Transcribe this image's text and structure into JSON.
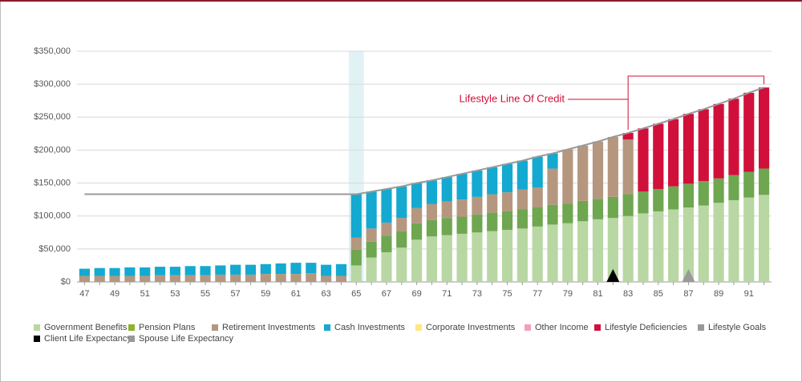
{
  "chart_data": {
    "type": "stacked_bar",
    "categories": [
      47,
      null,
      49,
      null,
      51,
      null,
      53,
      null,
      55,
      null,
      57,
      null,
      59,
      null,
      61,
      null,
      63,
      null,
      65,
      null,
      67,
      null,
      69,
      null,
      71,
      null,
      73,
      null,
      75,
      null,
      77,
      null,
      79,
      null,
      81,
      null,
      83,
      null,
      85,
      null,
      87,
      null,
      89,
      null,
      91,
      null
    ],
    "first_age": 47,
    "ylim": [
      0,
      350000
    ],
    "yticks": [
      {
        "value": 0,
        "label": "$0"
      },
      {
        "value": 50000,
        "label": "$50,000"
      },
      {
        "value": 100000,
        "label": "$100,000"
      },
      {
        "value": 150000,
        "label": "$150,000"
      },
      {
        "value": 200000,
        "label": "$200,000"
      },
      {
        "value": 250000,
        "label": "$250,000"
      },
      {
        "value": 300000,
        "label": "$300,000"
      },
      {
        "value": 350000,
        "label": "$350,000"
      }
    ],
    "grid": true,
    "highlight_age": 65,
    "series": [
      {
        "name": "Government Benefits",
        "color": "#b8d7a3",
        "values": [
          0,
          0,
          0,
          0,
          0,
          0,
          0,
          0,
          0,
          0,
          0,
          0,
          0,
          0,
          0,
          0,
          0,
          0,
          25000,
          37000,
          45000,
          52000,
          64000,
          69000,
          71000,
          73000,
          75000,
          77000,
          79000,
          81000,
          84000,
          87000,
          89000,
          92000,
          95000,
          97000,
          100000,
          104000,
          107000,
          110000,
          113000,
          116000,
          120000,
          124000,
          128000,
          132000
        ]
      },
      {
        "name": "Pension Plans",
        "color": "#6fa650",
        "legend_color": "#8db32a",
        "values": [
          0,
          0,
          0,
          0,
          0,
          0,
          0,
          0,
          0,
          0,
          0,
          0,
          0,
          0,
          0,
          0,
          0,
          0,
          24000,
          24000,
          25000,
          25000,
          25000,
          25000,
          26000,
          26000,
          27000,
          28000,
          28000,
          29000,
          29000,
          30000,
          30000,
          31000,
          31000,
          32000,
          33000,
          33000,
          34000,
          35000,
          36000,
          37000,
          37000,
          38000,
          39000,
          40000
        ]
      },
      {
        "name": "Retirement Investments",
        "color": "#b5977f",
        "values": [
          9000,
          9000,
          9000,
          9000,
          9000,
          10000,
          10000,
          10000,
          10000,
          11000,
          11000,
          11000,
          12000,
          12000,
          12000,
          13000,
          9000,
          9000,
          18000,
          20000,
          20000,
          20000,
          23000,
          24000,
          25000,
          26000,
          27000,
          28000,
          29000,
          30000,
          30000,
          55000,
          82000,
          84000,
          87000,
          91000,
          83000,
          0,
          0,
          0,
          0,
          0,
          0,
          0,
          0,
          0
        ]
      },
      {
        "name": "Cash Investments",
        "color": "#14a9d0",
        "values": [
          11000,
          12000,
          12000,
          13000,
          13000,
          13000,
          13000,
          14000,
          14000,
          14000,
          15000,
          15000,
          15000,
          16000,
          17000,
          16000,
          17000,
          18000,
          66000,
          56000,
          51000,
          48000,
          38000,
          36000,
          37000,
          39000,
          40000,
          41000,
          43000,
          44000,
          47000,
          23000,
          0,
          0,
          0,
          0,
          0,
          0,
          0,
          0,
          0,
          0,
          0,
          0,
          0,
          0
        ]
      },
      {
        "name": "Corporate Investments",
        "color": "#ffe680",
        "values": [
          0,
          0,
          0,
          0,
          0,
          0,
          0,
          0,
          0,
          0,
          0,
          0,
          0,
          0,
          0,
          0,
          0,
          0,
          0,
          0,
          0,
          0,
          0,
          0,
          0,
          0,
          0,
          0,
          0,
          0,
          0,
          0,
          0,
          0,
          0,
          0,
          0,
          0,
          0,
          0,
          0,
          0,
          0,
          0,
          0,
          0
        ]
      },
      {
        "name": "Other Income",
        "color": "#f2a0b5",
        "values": [
          0,
          0,
          0,
          0,
          0,
          0,
          0,
          0,
          0,
          0,
          0,
          0,
          0,
          0,
          0,
          0,
          0,
          0,
          0,
          0,
          0,
          0,
          0,
          0,
          0,
          0,
          0,
          0,
          0,
          0,
          0,
          0,
          0,
          0,
          0,
          0,
          0,
          0,
          0,
          0,
          0,
          0,
          0,
          0,
          0,
          0
        ]
      },
      {
        "name": "Lifestyle Deficiencies",
        "color": "#d0103a",
        "values": [
          0,
          0,
          0,
          0,
          0,
          0,
          0,
          0,
          0,
          0,
          0,
          0,
          0,
          0,
          0,
          0,
          0,
          0,
          0,
          0,
          0,
          0,
          0,
          0,
          0,
          0,
          0,
          0,
          0,
          0,
          0,
          0,
          0,
          0,
          0,
          0,
          10000,
          96000,
          99000,
          102000,
          106000,
          109000,
          113000,
          116000,
          120000,
          123000
        ]
      },
      {
        "name": "Lifestyle Goals",
        "color": "#999999",
        "kind": "line",
        "values": [
          133000,
          133000,
          133000,
          133000,
          133000,
          133000,
          133000,
          133000,
          133000,
          133000,
          133000,
          133000,
          133000,
          133000,
          133000,
          133000,
          133000,
          133000,
          133000,
          137000,
          141000,
          145000,
          150000,
          154000,
          159000,
          164000,
          169000,
          174000,
          179000,
          184000,
          190000,
          195000,
          201000,
          207000,
          213000,
          220000,
          226000,
          233000,
          240000,
          247000,
          255000,
          262000,
          270000,
          278000,
          287000,
          295000
        ]
      }
    ],
    "markers": [
      {
        "name": "Client Life Expectancy",
        "color": "#000000",
        "age": 82
      },
      {
        "name": "Spouse Life Expectancy",
        "color": "#999999",
        "age": 87
      }
    ],
    "annotation": {
      "text": "Lifestyle Line Of Credit",
      "color": "#d0103a",
      "from_age": 83,
      "to_age": 92
    }
  }
}
